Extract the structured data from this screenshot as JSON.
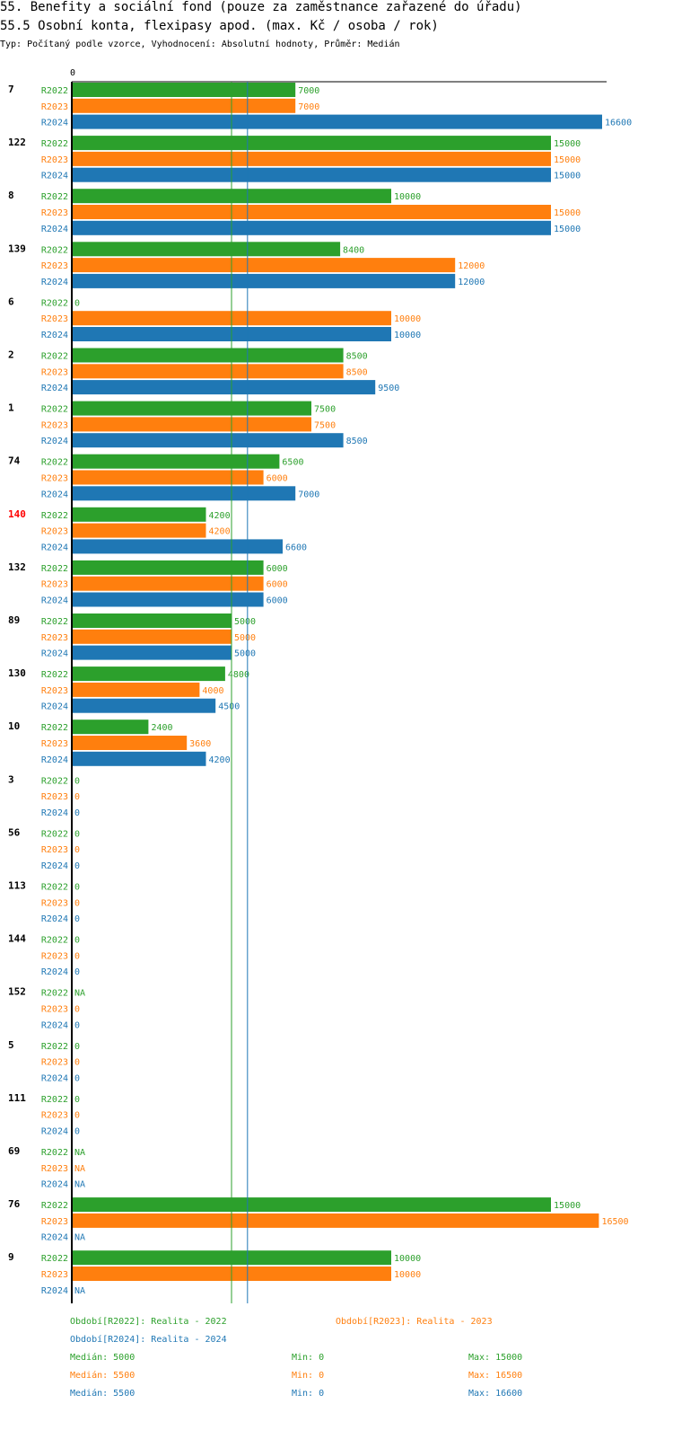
{
  "header": {
    "title": "55. Benefity a sociální fond (pouze za zaměstnance zařazené do úřadu)",
    "subtitle": "55.5 Osobní konta, flexipasy apod. (max. Kč / osoba / rok)",
    "note": "Typ: Počítaný podle vzorce, Vyhodnocení: Absolutní hodnoty, Průměr: Medián"
  },
  "chart_data": {
    "type": "bar",
    "orientation": "horizontal",
    "x_tick_label": "0",
    "xlim": [
      0,
      16600
    ],
    "series": [
      {
        "name": "R2022",
        "color": "#2ca02c",
        "median": 5000
      },
      {
        "name": "R2023",
        "color": "#ff7f0e",
        "median": 5500
      },
      {
        "name": "R2024",
        "color": "#1f77b4",
        "median": 5500
      }
    ],
    "categories": [
      {
        "id": "7",
        "highlight": false,
        "values": [
          7000,
          7000,
          16600
        ]
      },
      {
        "id": "122",
        "highlight": false,
        "values": [
          15000,
          15000,
          15000
        ]
      },
      {
        "id": "8",
        "highlight": false,
        "values": [
          10000,
          15000,
          15000
        ]
      },
      {
        "id": "139",
        "highlight": false,
        "values": [
          8400,
          12000,
          12000
        ]
      },
      {
        "id": "6",
        "highlight": false,
        "values": [
          0,
          10000,
          10000
        ]
      },
      {
        "id": "2",
        "highlight": false,
        "values": [
          8500,
          8500,
          9500
        ]
      },
      {
        "id": "1",
        "highlight": false,
        "values": [
          7500,
          7500,
          8500
        ]
      },
      {
        "id": "74",
        "highlight": false,
        "values": [
          6500,
          6000,
          7000
        ]
      },
      {
        "id": "140",
        "highlight": true,
        "values": [
          4200,
          4200,
          6600
        ]
      },
      {
        "id": "132",
        "highlight": false,
        "values": [
          6000,
          6000,
          6000
        ]
      },
      {
        "id": "89",
        "highlight": false,
        "values": [
          5000,
          5000,
          5000
        ]
      },
      {
        "id": "130",
        "highlight": false,
        "values": [
          4800,
          4000,
          4500
        ]
      },
      {
        "id": "10",
        "highlight": false,
        "values": [
          2400,
          3600,
          4200
        ]
      },
      {
        "id": "3",
        "highlight": false,
        "values": [
          0,
          0,
          0
        ]
      },
      {
        "id": "56",
        "highlight": false,
        "values": [
          0,
          0,
          0
        ]
      },
      {
        "id": "113",
        "highlight": false,
        "values": [
          0,
          0,
          0
        ]
      },
      {
        "id": "144",
        "highlight": false,
        "values": [
          0,
          0,
          0
        ]
      },
      {
        "id": "152",
        "highlight": false,
        "values": [
          "NA",
          0,
          0
        ]
      },
      {
        "id": "5",
        "highlight": false,
        "values": [
          0,
          0,
          0
        ]
      },
      {
        "id": "111",
        "highlight": false,
        "values": [
          0,
          0,
          0
        ]
      },
      {
        "id": "69",
        "highlight": false,
        "values": [
          "NA",
          "NA",
          "NA"
        ]
      },
      {
        "id": "76",
        "highlight": false,
        "values": [
          15000,
          16500,
          "NA"
        ]
      },
      {
        "id": "9",
        "highlight": false,
        "values": [
          10000,
          10000,
          "NA"
        ]
      }
    ]
  },
  "legend": {
    "period_r2022": "Období[R2022]: Realita - 2022",
    "period_r2023": "Období[R2023]: Realita - 2023",
    "period_r2024": "Období[R2024]: Realita - 2024",
    "stats": [
      {
        "median": "Medián: 5000",
        "min": "Min: 0",
        "max": "Max: 15000"
      },
      {
        "median": "Medián: 5500",
        "min": "Min: 0",
        "max": "Max: 16500"
      },
      {
        "median": "Medián: 5500",
        "min": "Min: 0",
        "max": "Max: 16600"
      }
    ]
  }
}
